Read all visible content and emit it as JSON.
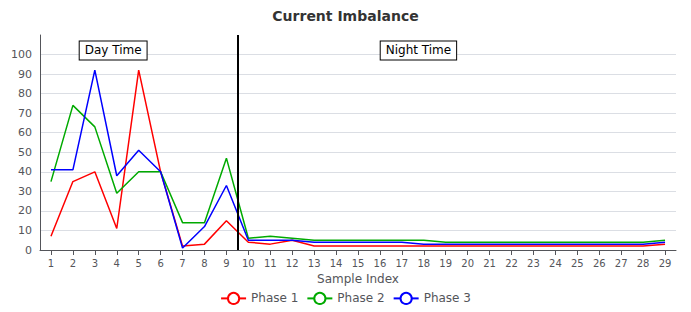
{
  "chart_data": {
    "type": "line",
    "title": "Current Imbalance",
    "xlabel": "Sample Index",
    "x": [
      1,
      2,
      3,
      4,
      5,
      6,
      7,
      8,
      9,
      10,
      11,
      12,
      13,
      14,
      15,
      16,
      17,
      18,
      19,
      20,
      21,
      22,
      23,
      24,
      25,
      26,
      27,
      28,
      29
    ],
    "series": [
      {
        "name": "Phase 1",
        "color": "#FF0000",
        "values": [
          7,
          35,
          40,
          11,
          92,
          40,
          2,
          3,
          15,
          4,
          3,
          5,
          2,
          2,
          2,
          2,
          2,
          2,
          2,
          2,
          2,
          2,
          2,
          2,
          2,
          2,
          2,
          2,
          3
        ]
      },
      {
        "name": "Phase 2",
        "color": "#00AA00",
        "values": [
          35,
          74,
          63,
          29,
          40,
          40,
          14,
          14,
          47,
          6,
          7,
          6,
          5,
          5,
          5,
          5,
          5,
          5,
          4,
          4,
          4,
          4,
          4,
          4,
          4,
          4,
          4,
          4,
          5
        ]
      },
      {
        "name": "Phase 3",
        "color": "#0000FF",
        "values": [
          41,
          41,
          92,
          38,
          51,
          40,
          1,
          12,
          33,
          5,
          5,
          5,
          4,
          4,
          4,
          4,
          4,
          3,
          3,
          3,
          3,
          3,
          3,
          3,
          3,
          3,
          3,
          3,
          4
        ]
      }
    ],
    "xlim": [
      0.5,
      29.5
    ],
    "xticks": [
      1,
      2,
      3,
      4,
      5,
      6,
      7,
      8,
      9,
      10,
      11,
      12,
      13,
      14,
      15,
      16,
      17,
      18,
      19,
      20,
      21,
      22,
      23,
      24,
      25,
      26,
      27,
      28,
      29
    ],
    "ylim": [
      0,
      110
    ],
    "yticks": [
      0,
      10,
      20,
      30,
      40,
      50,
      60,
      70,
      80,
      90,
      100
    ],
    "grid": true,
    "legend": "bottom",
    "vline_x": 9.5,
    "annotations": [
      "Day Time",
      "Night Time"
    ]
  }
}
